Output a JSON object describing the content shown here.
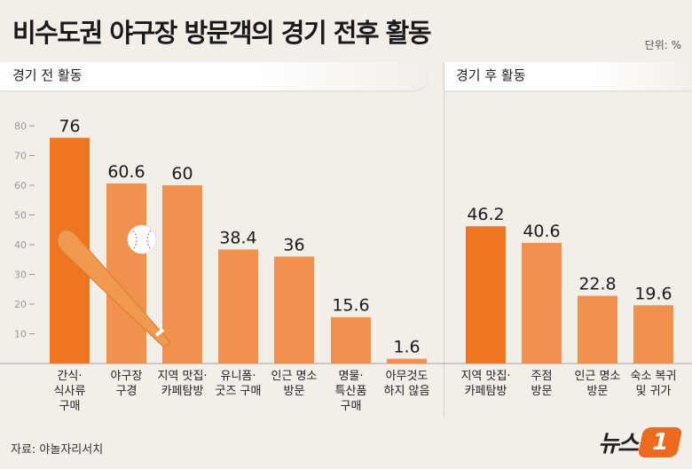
{
  "title": "비수도권 야구장 방문객의 경기 전후 활동",
  "unit": "단위: %",
  "source": "자료: 야놀자리서치",
  "logo": "뉴스1",
  "colors": {
    "highlight": "#ee7623",
    "bar": "#f0924e",
    "background": "#f4eee9"
  },
  "chart_data": [
    {
      "type": "bar",
      "title": "경기 전 활동",
      "categories": [
        "간식·\n식사류\n구매",
        "야구장\n구경",
        "지역 맛집·\n카페탐방",
        "유니폼·\n굿즈 구매",
        "인근 명소\n방문",
        "명물·\n특산품\n구매",
        "아무것도\n하지 않음"
      ],
      "values": [
        76,
        60.6,
        60,
        38.4,
        36,
        15.6,
        1.6
      ],
      "highlight_index": 0,
      "ylim": [
        0,
        80
      ],
      "yticks": [
        10,
        20,
        30,
        40,
        50,
        60,
        70,
        80
      ]
    },
    {
      "type": "bar",
      "title": "경기 후 활동",
      "categories": [
        "지역 맛집·\n카페탐방",
        "주점\n방문",
        "인근 명소\n방문",
        "숙소 복귀\n및 귀가"
      ],
      "values": [
        46.2,
        40.6,
        22.8,
        19.6
      ],
      "highlight_index": 0,
      "ylim": [
        0,
        80
      ]
    }
  ]
}
